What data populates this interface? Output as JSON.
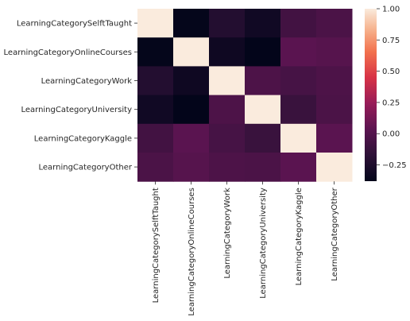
{
  "chart_data": {
    "type": "heatmap",
    "rows": [
      "LearningCategorySelftTaught",
      "LearningCategoryOnlineCourses",
      "LearningCategoryWork",
      "LearningCategoryUniversity",
      "LearningCategoryKaggle",
      "LearningCategoryOther"
    ],
    "columns": [
      "LearningCategorySelftTaught",
      "LearningCategoryOnlineCourses",
      "LearningCategoryWork",
      "LearningCategoryUniversity",
      "LearningCategoryKaggle",
      "LearningCategoryOther"
    ],
    "values": [
      [
        1.0,
        -0.37,
        -0.22,
        -0.31,
        -0.08,
        -0.04
      ],
      [
        -0.37,
        1.0,
        -0.32,
        -0.38,
        0.03,
        0.01
      ],
      [
        -0.22,
        -0.32,
        1.0,
        -0.03,
        -0.06,
        -0.03
      ],
      [
        -0.31,
        -0.38,
        -0.03,
        1.0,
        -0.12,
        -0.04
      ],
      [
        -0.08,
        0.03,
        -0.06,
        -0.12,
        1.0,
        0.03
      ],
      [
        -0.04,
        0.01,
        -0.03,
        -0.04,
        0.03,
        1.0
      ]
    ],
    "colorbar": {
      "vmin": -0.38,
      "vmax": 1.0,
      "ticks": [
        -0.25,
        0.0,
        0.25,
        0.5,
        0.75,
        1.0
      ],
      "tick_labels": [
        "−0.25",
        "0.00",
        "0.25",
        "0.50",
        "0.75",
        "1.00"
      ]
    },
    "colormap": "rocket",
    "title": "",
    "xlabel": "",
    "ylabel": ""
  }
}
